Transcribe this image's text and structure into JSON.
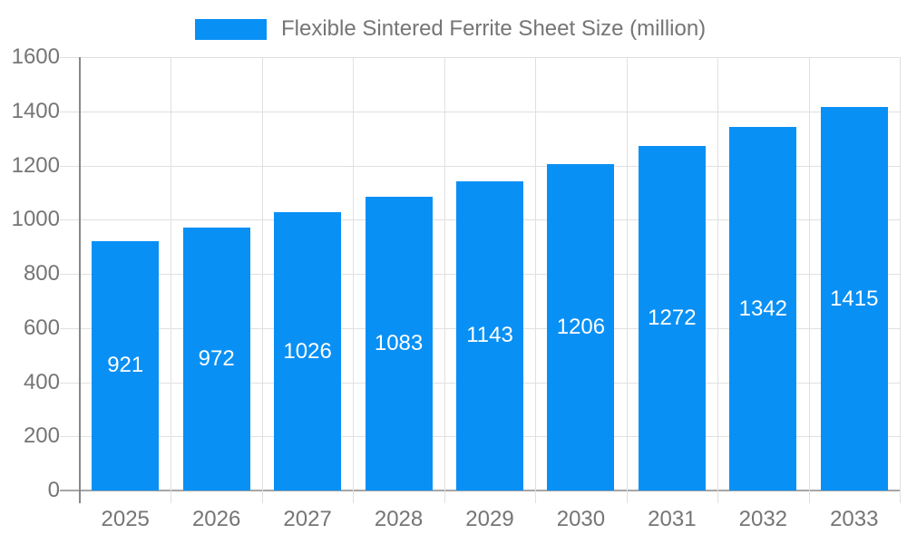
{
  "colors": {
    "bar": "#0990f5",
    "bar_value_text": "#ffffff",
    "axis_text": "#757575",
    "gridline": "#e0e0e0",
    "axis_line": "#888888",
    "baseline": "#a6a6a6",
    "background": "#ffffff"
  },
  "chart_data": {
    "type": "bar",
    "title": "Flexible Sintered Ferrite Sheet Size (million)",
    "legend_position": "top-center",
    "categories": [
      "2025",
      "2026",
      "2027",
      "2028",
      "2029",
      "2030",
      "2031",
      "2032",
      "2033"
    ],
    "series": [
      {
        "name": "Flexible Sintered Ferrite Sheet Size (million)",
        "values": [
          921,
          972,
          1026,
          1083,
          1143,
          1206,
          1272,
          1342,
          1415
        ]
      }
    ],
    "value_labels": [
      "921",
      "972",
      "1026",
      "1083",
      "1143",
      "1206",
      "1272",
      "1342",
      "1415"
    ],
    "xlabel": "",
    "ylabel": "",
    "ylim": [
      0,
      1600
    ],
    "yticks": [
      0,
      200,
      400,
      600,
      800,
      1000,
      1200,
      1400,
      1600
    ],
    "ytick_labels": [
      "0",
      "200",
      "400",
      "600",
      "800",
      "1000",
      "1200",
      "1400",
      "1600"
    ],
    "grid": true,
    "value_label_position": "inside-middle"
  }
}
